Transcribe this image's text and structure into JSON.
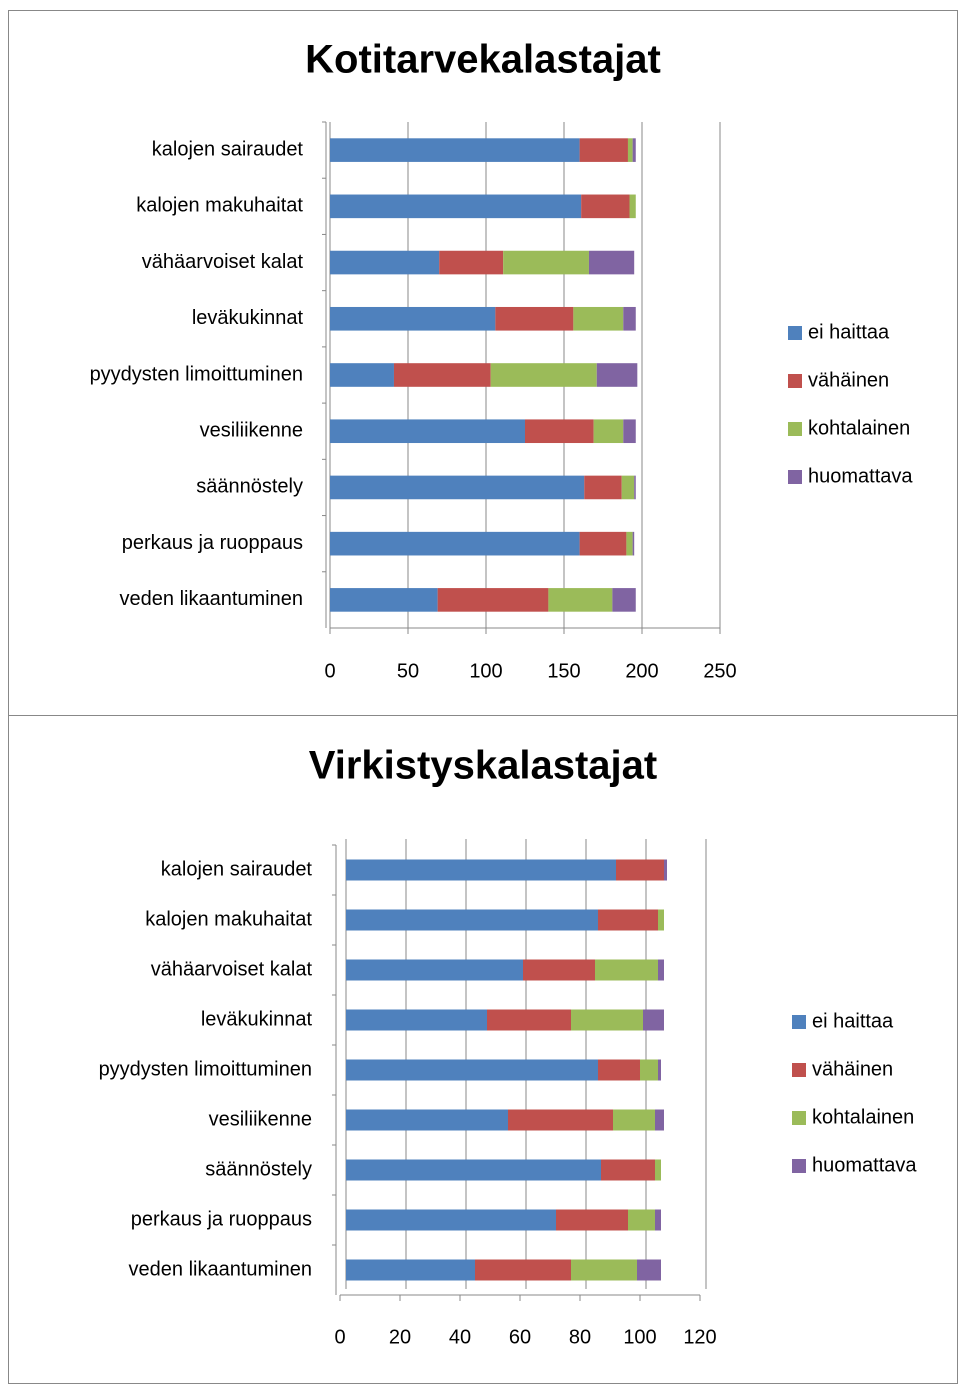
{
  "chart_data": [
    {
      "type": "bar",
      "orientation": "horizontal",
      "stacked": true,
      "title": "Kotitarvekalastajat",
      "categories": [
        "kalojen sairaudet",
        "kalojen makuhaitat",
        "vähäarvoiset kalat",
        "leväkukinnat",
        "pyydysten limoittuminen",
        "vesiliikenne",
        "säännöstely",
        "perkaus ja ruoppaus",
        "veden likaantuminen"
      ],
      "series": [
        {
          "name": "ei haittaa",
          "color": "#4f81bd",
          "values": [
            160,
            161,
            70,
            106,
            41,
            125,
            163,
            160,
            69
          ]
        },
        {
          "name": "vähäinen",
          "color": "#c0504d",
          "values": [
            31,
            31,
            41,
            50,
            62,
            44,
            24,
            30,
            71
          ]
        },
        {
          "name": "kohtalainen",
          "color": "#9bbb59",
          "values": [
            3,
            4,
            55,
            32,
            68,
            19,
            8,
            4,
            41
          ]
        },
        {
          "name": "huomattava",
          "color": "#8064a2",
          "values": [
            2,
            0,
            29,
            8,
            26,
            8,
            1,
            1,
            15
          ]
        }
      ],
      "xlim": [
        0,
        250
      ],
      "xticks": [
        0,
        50,
        100,
        150,
        200,
        250
      ],
      "grid": true,
      "legend": "right"
    },
    {
      "type": "bar",
      "orientation": "horizontal",
      "stacked": true,
      "title": "Virkistyskalastajat",
      "categories": [
        "kalojen sairaudet",
        "kalojen makuhaitat",
        "vähäarvoiset kalat",
        "leväkukinnat",
        "pyydysten limoittuminen",
        "vesiliikenne",
        "säännöstely",
        "perkaus ja ruoppaus",
        "veden likaantuminen"
      ],
      "series": [
        {
          "name": "ei haittaa",
          "color": "#4f81bd",
          "values": [
            90,
            84,
            59,
            47,
            84,
            54,
            85,
            70,
            43
          ]
        },
        {
          "name": "vähäinen",
          "color": "#c0504d",
          "values": [
            16,
            20,
            24,
            28,
            14,
            35,
            18,
            24,
            32
          ]
        },
        {
          "name": "kohtalainen",
          "color": "#9bbb59",
          "values": [
            0,
            2,
            21,
            24,
            6,
            14,
            2,
            9,
            22
          ]
        },
        {
          "name": "huomattava",
          "color": "#8064a2",
          "values": [
            1,
            0,
            2,
            7,
            1,
            3,
            0,
            2,
            8
          ]
        }
      ],
      "xlim": [
        0,
        120
      ],
      "xticks": [
        0,
        20,
        40,
        60,
        80,
        100,
        120
      ],
      "grid": true,
      "legend": "right"
    }
  ]
}
